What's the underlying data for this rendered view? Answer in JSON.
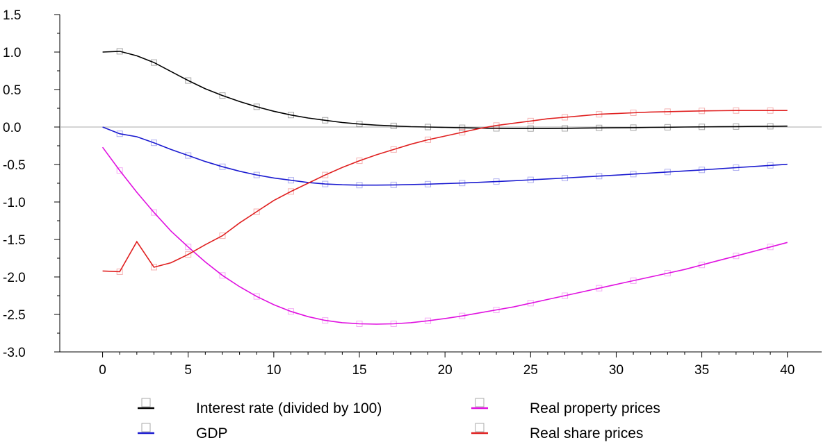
{
  "chart_data": {
    "type": "line",
    "title": "",
    "xlabel": "",
    "ylabel": "",
    "xlim": [
      -2.5,
      42
    ],
    "ylim": [
      -3.0,
      1.5
    ],
    "x_ticks": [
      0,
      5,
      10,
      15,
      20,
      25,
      30,
      35,
      40
    ],
    "x_tick_labels": [
      "0",
      "5",
      "10",
      "15",
      "20",
      "25",
      "30",
      "35",
      "40"
    ],
    "y_ticks": [
      1.5,
      1.0,
      0.5,
      0.0,
      -0.5,
      -1.0,
      -1.5,
      -2.0,
      -2.5,
      -3.0
    ],
    "y_tick_labels": [
      "1.5",
      "1.0",
      "0.5",
      "0.0",
      "-0.5",
      "-1.0",
      "-1.5",
      "-2.0",
      "-2.5",
      "-3.0"
    ],
    "zero_line": true,
    "grid": false,
    "legend_position": "bottom",
    "x": [
      0,
      1,
      2,
      3,
      4,
      5,
      6,
      7,
      8,
      9,
      10,
      11,
      12,
      13,
      14,
      15,
      16,
      17,
      18,
      19,
      20,
      21,
      22,
      23,
      24,
      25,
      26,
      27,
      28,
      29,
      30,
      31,
      32,
      33,
      34,
      35,
      36,
      37,
      38,
      39,
      40
    ],
    "series": [
      {
        "name": "Interest rate (divided by 100)",
        "color": "#000000",
        "legend_marker": "#000000",
        "values": [
          1.0,
          1.01,
          0.95,
          0.86,
          0.74,
          0.62,
          0.51,
          0.42,
          0.34,
          0.27,
          0.21,
          0.16,
          0.12,
          0.09,
          0.06,
          0.04,
          0.025,
          0.015,
          0.005,
          0.0,
          -0.005,
          -0.01,
          -0.015,
          -0.018,
          -0.02,
          -0.02,
          -0.02,
          -0.018,
          -0.015,
          -0.012,
          -0.01,
          -0.008,
          -0.005,
          -0.003,
          0.0,
          0.002,
          0.004,
          0.006,
          0.008,
          0.01,
          0.012
        ]
      },
      {
        "name": "GDP",
        "color": "#1a1ad0",
        "legend_marker": "#1a1ad0",
        "values": [
          0.0,
          -0.09,
          -0.13,
          -0.21,
          -0.3,
          -0.38,
          -0.46,
          -0.53,
          -0.59,
          -0.64,
          -0.68,
          -0.71,
          -0.74,
          -0.76,
          -0.77,
          -0.775,
          -0.775,
          -0.772,
          -0.768,
          -0.762,
          -0.755,
          -0.747,
          -0.738,
          -0.728,
          -0.717,
          -0.705,
          -0.693,
          -0.681,
          -0.668,
          -0.655,
          -0.642,
          -0.628,
          -0.614,
          -0.6,
          -0.586,
          -0.572,
          -0.557,
          -0.542,
          -0.527,
          -0.512,
          -0.497
        ]
      },
      {
        "name": "Real property prices",
        "color": "#e010e0",
        "legend_marker": "#e010e0",
        "values": [
          -0.27,
          -0.58,
          -0.87,
          -1.14,
          -1.39,
          -1.6,
          -1.8,
          -1.98,
          -2.13,
          -2.26,
          -2.37,
          -2.46,
          -2.53,
          -2.58,
          -2.61,
          -2.625,
          -2.63,
          -2.625,
          -2.61,
          -2.585,
          -2.555,
          -2.52,
          -2.48,
          -2.44,
          -2.4,
          -2.35,
          -2.3,
          -2.25,
          -2.2,
          -2.15,
          -2.1,
          -2.05,
          -2.0,
          -1.95,
          -1.9,
          -1.84,
          -1.78,
          -1.72,
          -1.66,
          -1.6,
          -1.54
        ]
      },
      {
        "name": "Real share prices",
        "color": "#e02020",
        "legend_marker": "#e02020",
        "values": [
          -1.92,
          -1.93,
          -1.53,
          -1.87,
          -1.81,
          -1.7,
          -1.57,
          -1.45,
          -1.28,
          -1.13,
          -0.98,
          -0.86,
          -0.75,
          -0.64,
          -0.54,
          -0.45,
          -0.37,
          -0.3,
          -0.23,
          -0.17,
          -0.12,
          -0.07,
          -0.02,
          0.02,
          0.05,
          0.08,
          0.11,
          0.13,
          0.15,
          0.17,
          0.18,
          0.19,
          0.2,
          0.205,
          0.21,
          0.215,
          0.218,
          0.22,
          0.22,
          0.22,
          0.22
        ]
      }
    ]
  }
}
